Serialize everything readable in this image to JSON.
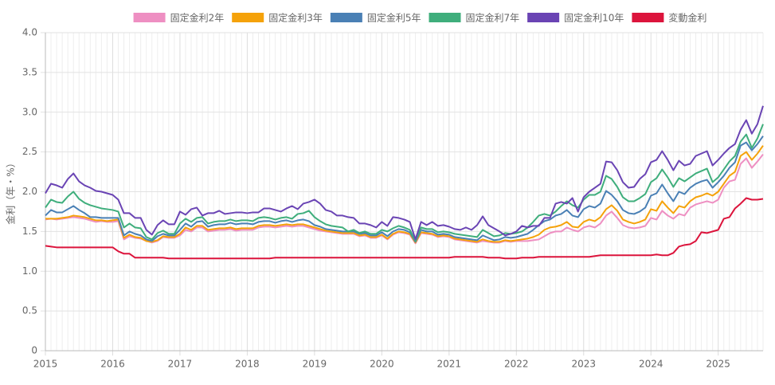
{
  "chart_data": {
    "type": "line",
    "y_label": "金利（年・%）",
    "categories": [
      "2015",
      null,
      null,
      null,
      null,
      null,
      null,
      null,
      null,
      null,
      null,
      null,
      "2016",
      null,
      null,
      null,
      null,
      null,
      null,
      null,
      null,
      null,
      null,
      null,
      "2017",
      null,
      null,
      null,
      null,
      null,
      null,
      null,
      null,
      null,
      null,
      null,
      "2018",
      null,
      null,
      null,
      null,
      null,
      null,
      null,
      null,
      null,
      null,
      null,
      "2019",
      null,
      null,
      null,
      null,
      null,
      null,
      null,
      null,
      null,
      null,
      null,
      "2020",
      null,
      null,
      null,
      null,
      null,
      null,
      null,
      null,
      null,
      null,
      null,
      "2021",
      null,
      null,
      null,
      null,
      null,
      null,
      null,
      null,
      null,
      null,
      null,
      "2022",
      null,
      null,
      null,
      null,
      null,
      null,
      null,
      null,
      null,
      null,
      null,
      "2023",
      null,
      null,
      null,
      null,
      null,
      null,
      null,
      null,
      null,
      null,
      null,
      "2024",
      null,
      null,
      null,
      null,
      null,
      null,
      null,
      null,
      null,
      null,
      null,
      "2025",
      null,
      null,
      null,
      null,
      null,
      null,
      null,
      null
    ],
    "ylim": [
      0,
      4
    ],
    "yticks": [
      0,
      0.5,
      {
        "value": 1,
        "label": "1.0"
      },
      1.5,
      {
        "value": 2,
        "label": "2.0"
      },
      2.5,
      {
        "value": 3,
        "label": "3.0"
      },
      3.5,
      {
        "value": 4,
        "label": "4.0"
      }
    ],
    "grid": true,
    "legend": "top",
    "series": [
      {
        "name": "固定金利2年",
        "color": "#ee8fc2",
        "values": [
          1.65,
          1.66,
          1.65,
          1.66,
          1.67,
          1.68,
          1.67,
          1.66,
          1.64,
          1.62,
          1.63,
          1.62,
          1.62,
          1.63,
          1.4,
          1.44,
          1.42,
          1.41,
          1.38,
          1.36,
          1.38,
          1.43,
          1.42,
          1.42,
          1.45,
          1.52,
          1.5,
          1.55,
          1.55,
          1.5,
          1.51,
          1.52,
          1.52,
          1.53,
          1.51,
          1.52,
          1.52,
          1.52,
          1.55,
          1.56,
          1.56,
          1.55,
          1.56,
          1.57,
          1.56,
          1.57,
          1.57,
          1.55,
          1.53,
          1.51,
          1.5,
          1.49,
          1.48,
          1.47,
          1.47,
          1.47,
          1.44,
          1.45,
          1.42,
          1.42,
          1.45,
          1.4,
          1.46,
          1.49,
          1.48,
          1.46,
          1.35,
          1.48,
          1.47,
          1.46,
          1.43,
          1.44,
          1.43,
          1.4,
          1.39,
          1.38,
          1.37,
          1.36,
          1.38,
          1.37,
          1.36,
          1.36,
          1.38,
          1.37,
          1.38,
          1.38,
          1.38,
          1.39,
          1.4,
          1.44,
          1.48,
          1.5,
          1.5,
          1.55,
          1.52,
          1.5,
          1.55,
          1.57,
          1.55,
          1.6,
          1.7,
          1.75,
          1.67,
          1.58,
          1.55,
          1.54,
          1.55,
          1.57,
          1.67,
          1.65,
          1.76,
          1.7,
          1.66,
          1.72,
          1.7,
          1.8,
          1.84,
          1.86,
          1.88,
          1.86,
          1.9,
          2.05,
          2.13,
          2.15,
          2.35,
          2.42,
          2.3,
          2.38,
          2.47
        ]
      },
      {
        "name": "固定金利3年",
        "color": "#f5a20a",
        "values": [
          1.66,
          1.66,
          1.66,
          1.67,
          1.68,
          1.7,
          1.69,
          1.68,
          1.66,
          1.64,
          1.64,
          1.63,
          1.64,
          1.65,
          1.42,
          1.46,
          1.43,
          1.42,
          1.38,
          1.37,
          1.39,
          1.44,
          1.43,
          1.43,
          1.47,
          1.55,
          1.52,
          1.57,
          1.57,
          1.52,
          1.53,
          1.54,
          1.54,
          1.55,
          1.53,
          1.54,
          1.54,
          1.54,
          1.57,
          1.58,
          1.58,
          1.57,
          1.58,
          1.59,
          1.58,
          1.59,
          1.59,
          1.57,
          1.55,
          1.53,
          1.51,
          1.5,
          1.49,
          1.48,
          1.48,
          1.48,
          1.45,
          1.46,
          1.43,
          1.43,
          1.46,
          1.41,
          1.47,
          1.5,
          1.49,
          1.47,
          1.36,
          1.49,
          1.48,
          1.47,
          1.44,
          1.45,
          1.44,
          1.41,
          1.4,
          1.39,
          1.38,
          1.37,
          1.4,
          1.38,
          1.37,
          1.37,
          1.39,
          1.38,
          1.39,
          1.4,
          1.41,
          1.43,
          1.46,
          1.52,
          1.55,
          1.56,
          1.58,
          1.62,
          1.56,
          1.55,
          1.62,
          1.65,
          1.63,
          1.68,
          1.78,
          1.83,
          1.76,
          1.65,
          1.62,
          1.6,
          1.62,
          1.65,
          1.78,
          1.76,
          1.88,
          1.8,
          1.73,
          1.82,
          1.8,
          1.88,
          1.93,
          1.95,
          1.98,
          1.95,
          2.0,
          2.1,
          2.2,
          2.25,
          2.45,
          2.5,
          2.4,
          2.48,
          2.58
        ]
      },
      {
        "name": "固定金利5年",
        "color": "#4a80b5",
        "values": [
          1.7,
          1.77,
          1.74,
          1.74,
          1.78,
          1.82,
          1.77,
          1.73,
          1.68,
          1.68,
          1.67,
          1.67,
          1.67,
          1.67,
          1.45,
          1.5,
          1.47,
          1.45,
          1.4,
          1.38,
          1.44,
          1.47,
          1.45,
          1.45,
          1.52,
          1.6,
          1.56,
          1.62,
          1.63,
          1.56,
          1.58,
          1.59,
          1.59,
          1.61,
          1.59,
          1.6,
          1.6,
          1.59,
          1.62,
          1.63,
          1.63,
          1.61,
          1.63,
          1.64,
          1.62,
          1.64,
          1.65,
          1.63,
          1.58,
          1.56,
          1.53,
          1.52,
          1.51,
          1.5,
          1.5,
          1.5,
          1.47,
          1.48,
          1.45,
          1.45,
          1.49,
          1.44,
          1.5,
          1.53,
          1.52,
          1.49,
          1.37,
          1.52,
          1.5,
          1.5,
          1.46,
          1.47,
          1.46,
          1.43,
          1.42,
          1.41,
          1.4,
          1.39,
          1.45,
          1.42,
          1.39,
          1.4,
          1.43,
          1.42,
          1.43,
          1.45,
          1.47,
          1.52,
          1.58,
          1.63,
          1.65,
          1.7,
          1.72,
          1.77,
          1.7,
          1.68,
          1.78,
          1.82,
          1.8,
          1.85,
          2.01,
          1.96,
          1.88,
          1.77,
          1.73,
          1.72,
          1.75,
          1.8,
          1.95,
          1.98,
          2.09,
          1.98,
          1.88,
          2.0,
          1.97,
          2.05,
          2.1,
          2.13,
          2.15,
          2.05,
          2.12,
          2.2,
          2.3,
          2.37,
          2.58,
          2.62,
          2.52,
          2.6,
          2.7
        ]
      },
      {
        "name": "固定金利7年",
        "color": "#3fae7c",
        "values": [
          1.8,
          1.9,
          1.87,
          1.86,
          1.94,
          2.0,
          1.91,
          1.86,
          1.83,
          1.81,
          1.79,
          1.78,
          1.77,
          1.75,
          1.55,
          1.6,
          1.55,
          1.54,
          1.43,
          1.4,
          1.48,
          1.51,
          1.47,
          1.47,
          1.6,
          1.66,
          1.62,
          1.67,
          1.68,
          1.6,
          1.62,
          1.63,
          1.63,
          1.65,
          1.63,
          1.64,
          1.64,
          1.63,
          1.67,
          1.68,
          1.67,
          1.65,
          1.67,
          1.68,
          1.66,
          1.72,
          1.73,
          1.76,
          1.68,
          1.63,
          1.59,
          1.57,
          1.56,
          1.55,
          1.5,
          1.52,
          1.48,
          1.5,
          1.47,
          1.47,
          1.52,
          1.5,
          1.54,
          1.57,
          1.55,
          1.52,
          1.38,
          1.55,
          1.53,
          1.53,
          1.49,
          1.5,
          1.49,
          1.47,
          1.46,
          1.45,
          1.44,
          1.43,
          1.52,
          1.48,
          1.44,
          1.45,
          1.48,
          1.47,
          1.48,
          1.5,
          1.55,
          1.62,
          1.7,
          1.72,
          1.7,
          1.75,
          1.82,
          1.88,
          1.83,
          1.8,
          1.9,
          1.96,
          1.96,
          2.0,
          2.2,
          2.16,
          2.06,
          1.93,
          1.88,
          1.88,
          1.92,
          1.97,
          2.12,
          2.17,
          2.28,
          2.18,
          2.06,
          2.17,
          2.13,
          2.18,
          2.23,
          2.26,
          2.29,
          2.12,
          2.18,
          2.28,
          2.38,
          2.45,
          2.63,
          2.72,
          2.55,
          2.67,
          2.85
        ]
      },
      {
        "name": "固定金利10年",
        "color": "#6a44b4",
        "values": [
          1.98,
          2.1,
          2.08,
          2.05,
          2.16,
          2.23,
          2.13,
          2.08,
          2.05,
          2.01,
          2.0,
          1.98,
          1.96,
          1.9,
          1.73,
          1.73,
          1.67,
          1.67,
          1.52,
          1.46,
          1.58,
          1.64,
          1.59,
          1.59,
          1.75,
          1.71,
          1.78,
          1.8,
          1.7,
          1.73,
          1.73,
          1.76,
          1.72,
          1.73,
          1.74,
          1.74,
          1.73,
          1.74,
          1.74,
          1.79,
          1.79,
          1.77,
          1.75,
          1.79,
          1.82,
          1.78,
          1.85,
          1.87,
          1.9,
          1.85,
          1.77,
          1.75,
          1.7,
          1.7,
          1.68,
          1.67,
          1.6,
          1.6,
          1.58,
          1.55,
          1.62,
          1.57,
          1.68,
          1.67,
          1.65,
          1.62,
          1.4,
          1.62,
          1.58,
          1.62,
          1.57,
          1.58,
          1.56,
          1.53,
          1.52,
          1.55,
          1.52,
          1.58,
          1.69,
          1.58,
          1.54,
          1.5,
          1.45,
          1.47,
          1.5,
          1.57,
          1.55,
          1.57,
          1.57,
          1.67,
          1.67,
          1.85,
          1.87,
          1.85,
          1.92,
          1.75,
          1.93,
          2.0,
          2.05,
          2.1,
          2.38,
          2.37,
          2.27,
          2.12,
          2.05,
          2.06,
          2.16,
          2.22,
          2.37,
          2.4,
          2.51,
          2.4,
          2.27,
          2.39,
          2.33,
          2.35,
          2.45,
          2.48,
          2.51,
          2.33,
          2.4,
          2.48,
          2.55,
          2.6,
          2.78,
          2.9,
          2.73,
          2.85,
          3.08
        ]
      },
      {
        "name": "変動金利",
        "color": "#dc143c",
        "values": [
          1.32,
          1.31,
          1.3,
          1.3,
          1.3,
          1.3,
          1.3,
          1.3,
          1.3,
          1.3,
          1.3,
          1.3,
          1.3,
          1.25,
          1.22,
          1.22,
          1.17,
          1.17,
          1.17,
          1.17,
          1.17,
          1.17,
          1.16,
          1.16,
          1.16,
          1.16,
          1.16,
          1.16,
          1.16,
          1.16,
          1.16,
          1.16,
          1.16,
          1.16,
          1.16,
          1.16,
          1.16,
          1.16,
          1.16,
          1.16,
          1.16,
          1.17,
          1.17,
          1.17,
          1.17,
          1.17,
          1.17,
          1.17,
          1.17,
          1.17,
          1.17,
          1.17,
          1.17,
          1.17,
          1.17,
          1.17,
          1.17,
          1.17,
          1.17,
          1.17,
          1.17,
          1.17,
          1.17,
          1.17,
          1.17,
          1.17,
          1.17,
          1.17,
          1.17,
          1.17,
          1.17,
          1.17,
          1.17,
          1.18,
          1.18,
          1.18,
          1.18,
          1.18,
          1.18,
          1.17,
          1.17,
          1.17,
          1.16,
          1.16,
          1.16,
          1.17,
          1.17,
          1.17,
          1.18,
          1.18,
          1.18,
          1.18,
          1.18,
          1.18,
          1.18,
          1.18,
          1.18,
          1.18,
          1.19,
          1.2,
          1.2,
          1.2,
          1.2,
          1.2,
          1.2,
          1.2,
          1.2,
          1.2,
          1.2,
          1.21,
          1.2,
          1.2,
          1.23,
          1.31,
          1.33,
          1.34,
          1.38,
          1.49,
          1.48,
          1.5,
          1.52,
          1.66,
          1.68,
          1.79,
          1.85,
          1.92,
          1.9,
          1.9,
          1.91
        ]
      }
    ]
  }
}
